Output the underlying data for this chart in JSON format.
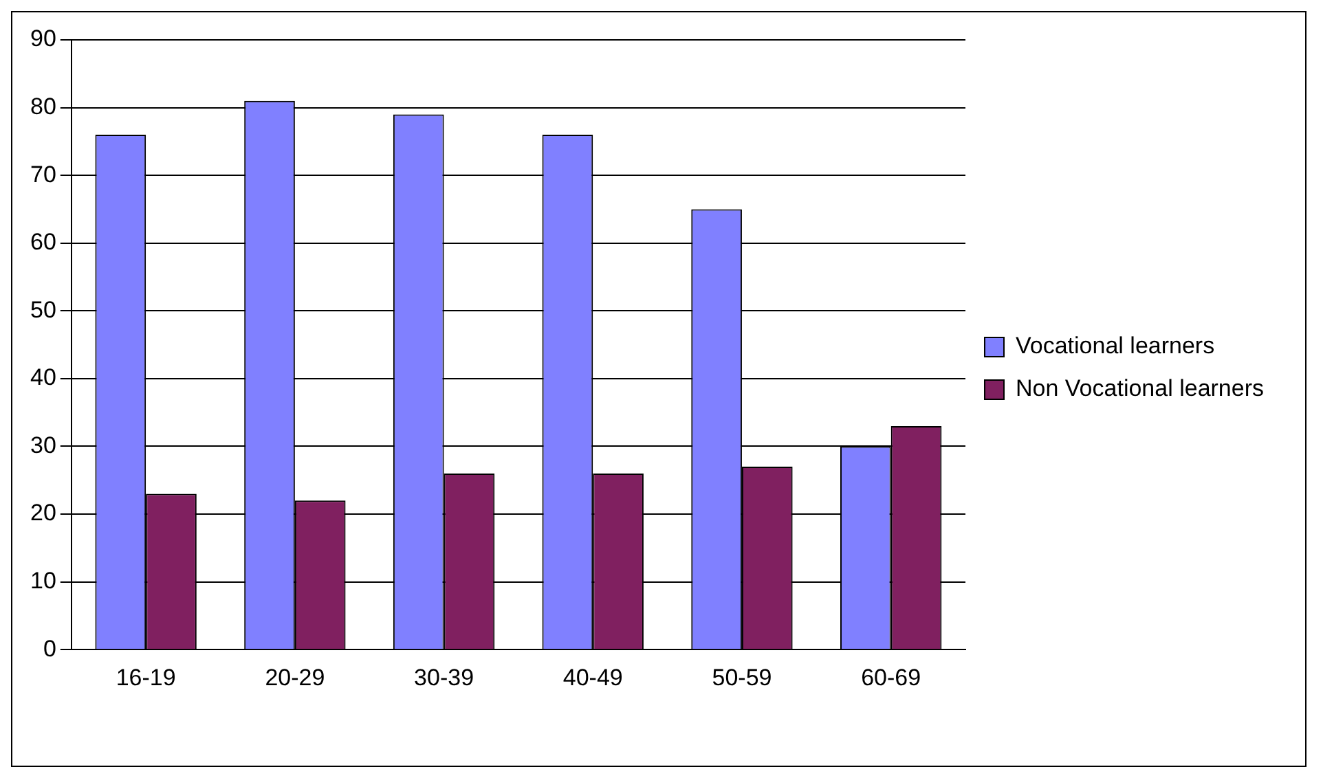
{
  "chart_data": {
    "type": "bar",
    "categories": [
      "16-19",
      "20-29",
      "30-39",
      "40-49",
      "50-59",
      "60-69"
    ],
    "series": [
      {
        "name": "Vocational learners",
        "color": "#8080ff",
        "values": [
          76,
          81,
          79,
          76,
          65,
          30
        ]
      },
      {
        "name": "Non Vocational learners",
        "color": "#802060",
        "values": [
          23,
          22,
          26,
          26,
          27,
          33
        ]
      }
    ],
    "ylim": [
      0,
      90
    ],
    "yticks": [
      0,
      10,
      20,
      30,
      40,
      50,
      60,
      70,
      80,
      90
    ],
    "grid": "y",
    "legend": "right"
  }
}
